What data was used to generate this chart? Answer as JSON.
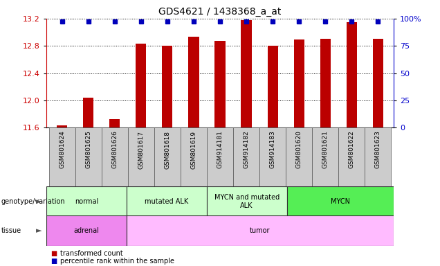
{
  "title": "GDS4621 / 1438368_a_at",
  "samples": [
    "GSM801624",
    "GSM801625",
    "GSM801626",
    "GSM801617",
    "GSM801618",
    "GSM801619",
    "GSM914181",
    "GSM914182",
    "GSM914183",
    "GSM801620",
    "GSM801621",
    "GSM801622",
    "GSM801623"
  ],
  "bar_values": [
    11.63,
    12.04,
    11.73,
    12.83,
    12.8,
    12.93,
    12.87,
    13.18,
    12.8,
    12.89,
    12.9,
    13.15,
    12.9
  ],
  "blue_y_values": [
    97,
    97,
    97,
    97,
    97,
    97,
    97,
    97,
    97,
    97,
    97,
    97,
    97
  ],
  "ylim": [
    11.6,
    13.2
  ],
  "yticks_left": [
    11.6,
    12.0,
    12.4,
    12.8,
    13.2
  ],
  "yticks_right": [
    0,
    25,
    50,
    75,
    100
  ],
  "bar_color": "#bb0000",
  "blue_color": "#0000bb",
  "genotype_groups": [
    {
      "label": "normal",
      "start": 0,
      "end": 3,
      "color": "#ccffcc"
    },
    {
      "label": "mutated ALK",
      "start": 3,
      "end": 6,
      "color": "#ccffcc"
    },
    {
      "label": "MYCN and mutated\nALK",
      "start": 6,
      "end": 9,
      "color": "#ccffcc"
    },
    {
      "label": "MYCN",
      "start": 9,
      "end": 13,
      "color": "#55ee55"
    }
  ],
  "tissue_groups": [
    {
      "label": "adrenal",
      "start": 0,
      "end": 3,
      "color": "#ee88ee"
    },
    {
      "label": "tumor",
      "start": 3,
      "end": 13,
      "color": "#ffbbff"
    }
  ],
  "legend_items": [
    {
      "color": "#bb0000",
      "label": "transformed count"
    },
    {
      "color": "#0000bb",
      "label": "percentile rank within the sample"
    }
  ],
  "bg_color": "#ffffff",
  "tick_label_color_left": "#cc0000",
  "tick_label_color_right": "#0000cc",
  "xlabel_bg": "#cccccc",
  "bar_width": 0.4
}
